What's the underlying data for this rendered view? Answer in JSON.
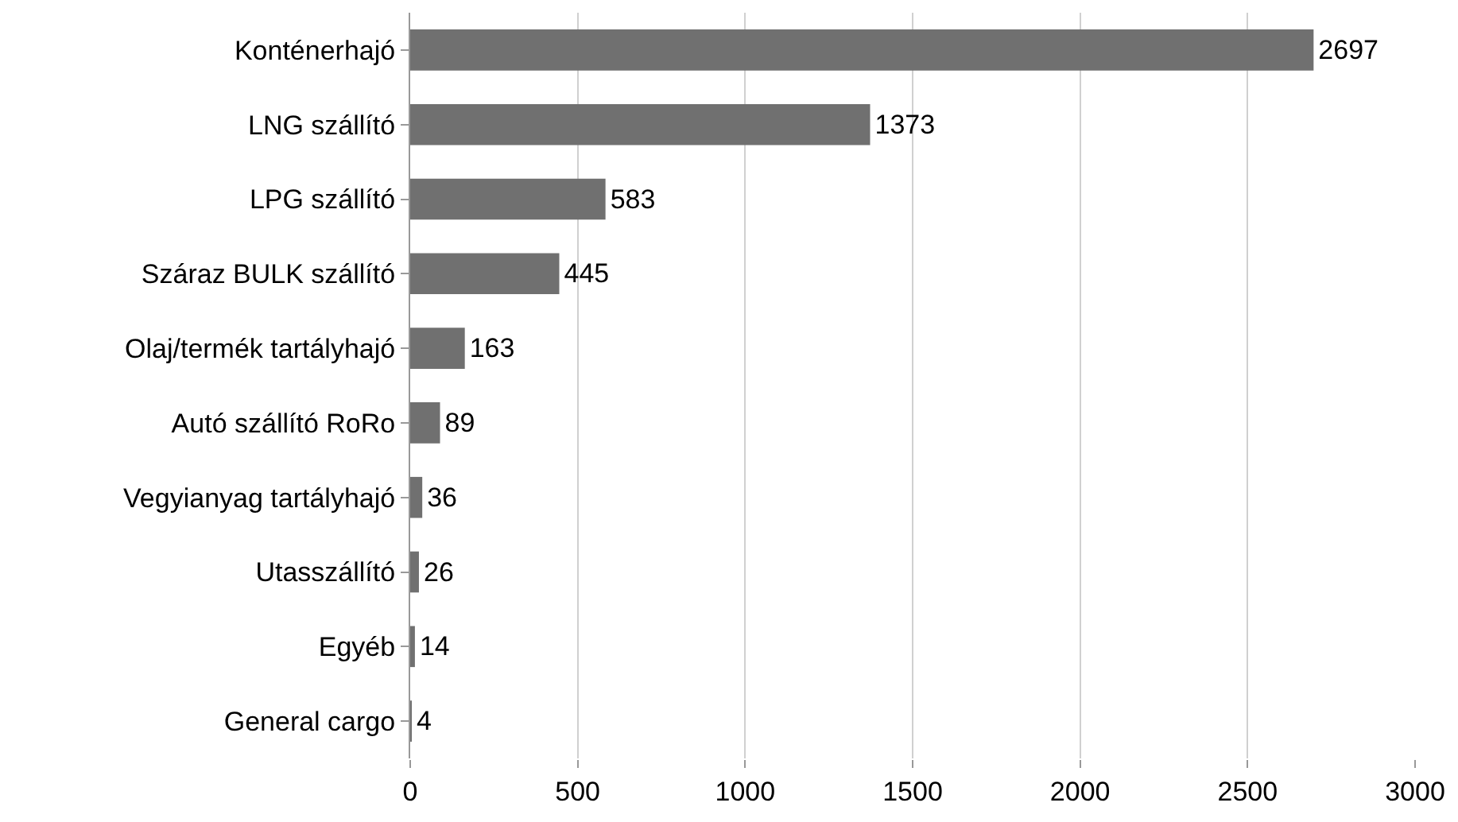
{
  "chart_data": {
    "type": "bar",
    "orientation": "horizontal",
    "categories": [
      "Konténerhajó",
      "LNG szállító",
      "LPG szállító",
      "Száraz BULK szállító",
      "Olaj/termék tartályhajó",
      "Autó szállító RoRo",
      "Vegyianyag tartályhajó",
      "Utasszállító",
      "Egyéb",
      "General cargo"
    ],
    "values": [
      2697,
      1373,
      583,
      445,
      163,
      89,
      36,
      26,
      14,
      4
    ],
    "color": "#707070",
    "xlim": [
      0,
      3000
    ],
    "xticks": [
      0,
      500,
      1000,
      1500,
      2000,
      2500,
      3000
    ],
    "grid": "x",
    "data_labels": true
  }
}
